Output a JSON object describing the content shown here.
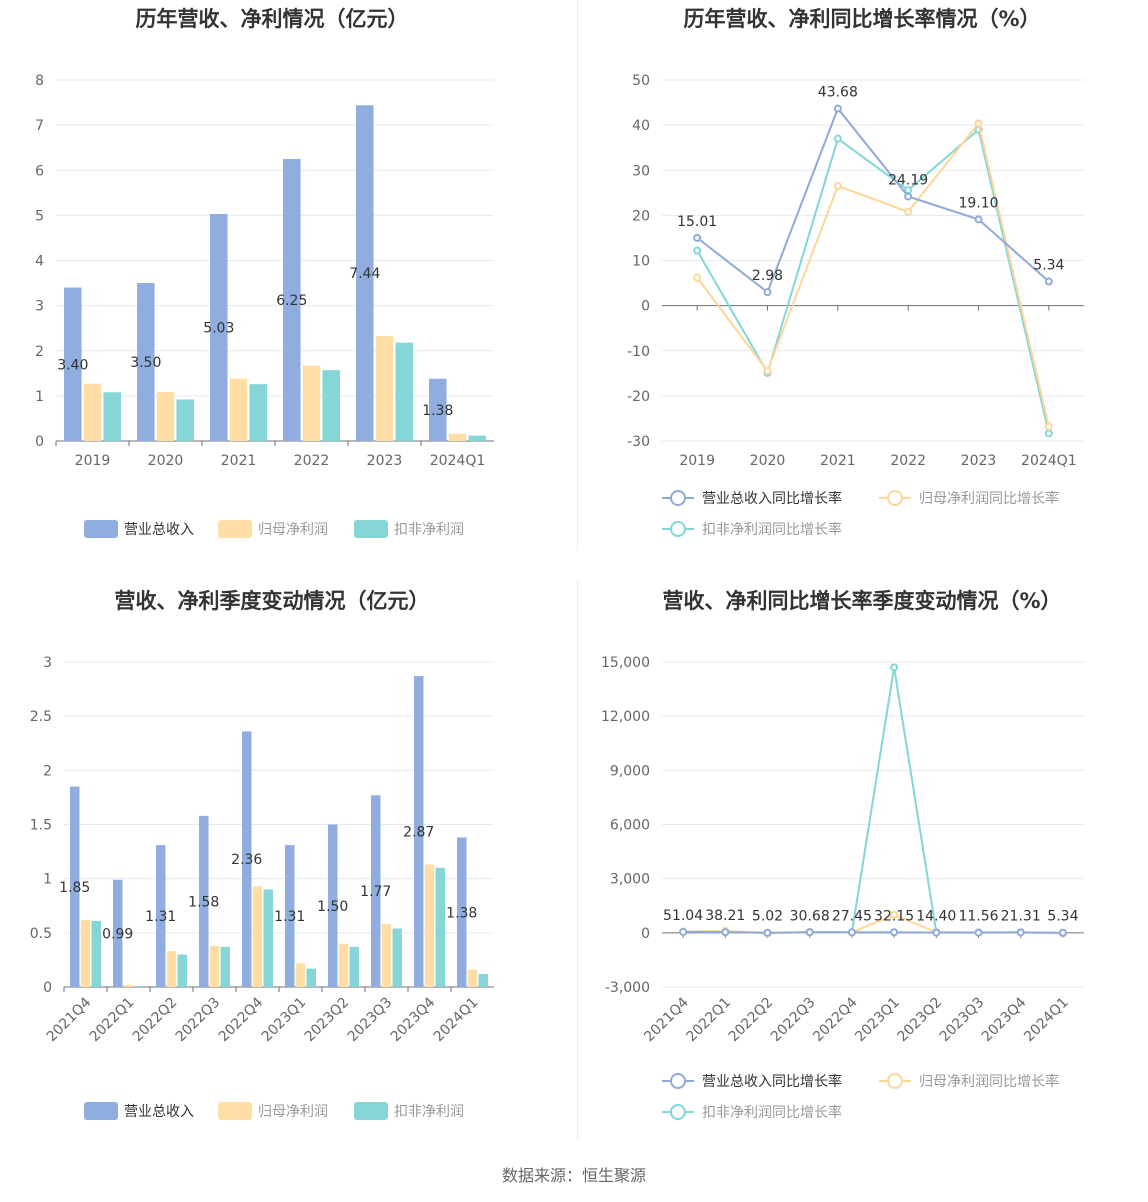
{
  "colors": {
    "revenue": "#8fadde",
    "parent_profit": "#ffdea6",
    "deducted_profit": "#86d6d8",
    "revenue_line": "#8fa9db",
    "parent_line": "#ffd698",
    "deducted_line": "#7fd8d7"
  },
  "legend": {
    "bar": [
      "营业总收入",
      "归母净利润",
      "扣非净利润"
    ],
    "line": [
      "营业总收入同比增长率",
      "归母净利润同比增长率",
      "扣非净利润同比增长率"
    ]
  },
  "footer": {
    "source": "数据来源：恒生聚源"
  },
  "chart_data": [
    {
      "id": "annual-amount",
      "type": "bar",
      "title": "历年营收、净利情况（亿元）",
      "categories": [
        "2019",
        "2020",
        "2021",
        "2022",
        "2023",
        "2024Q1"
      ],
      "ylim": [
        0,
        8
      ],
      "yticks": [
        "0",
        "1",
        "2",
        "3",
        "4",
        "5",
        "6",
        "7",
        "8"
      ],
      "ytick_values": [
        0,
        1,
        2,
        3,
        4,
        5,
        6,
        7,
        8
      ],
      "series": [
        {
          "name": "营业总收入",
          "values": [
            3.4,
            3.5,
            5.03,
            6.25,
            7.44,
            1.38
          ],
          "labels": [
            "3.40",
            "3.50",
            "5.03",
            "6.25",
            "7.44",
            "1.38"
          ]
        },
        {
          "name": "归母净利润",
          "values": [
            1.27,
            1.09,
            1.38,
            1.67,
            2.33,
            0.16
          ]
        },
        {
          "name": "扣非净利润",
          "values": [
            1.08,
            0.92,
            1.26,
            1.57,
            2.18,
            0.12
          ]
        }
      ],
      "grid": true,
      "legend_position": "bottom"
    },
    {
      "id": "annual-growth",
      "type": "line",
      "title": "历年营收、净利同比增长率情况（%）",
      "categories": [
        "2019",
        "2020",
        "2021",
        "2022",
        "2023",
        "2024Q1"
      ],
      "ylim": [
        -30,
        50
      ],
      "yticks": [
        "-30",
        "-20",
        "-10",
        "0",
        "10",
        "20",
        "30",
        "40",
        "50"
      ],
      "ytick_values": [
        -30,
        -20,
        -10,
        0,
        10,
        20,
        30,
        40,
        50
      ],
      "series": [
        {
          "name": "营业总收入同比增长率",
          "values": [
            15.01,
            2.98,
            43.68,
            24.19,
            19.1,
            5.34
          ],
          "labels": [
            "15.01",
            "2.98",
            "43.68",
            "24.19",
            "19.10",
            "5.34"
          ]
        },
        {
          "name": "归母净利润同比增长率",
          "values": [
            6.2,
            -14.5,
            26.5,
            20.8,
            40.4,
            -26.8
          ]
        },
        {
          "name": "扣非净利润同比增长率",
          "values": [
            12.2,
            -14.9,
            37.0,
            25.6,
            39.0,
            -28.3
          ]
        }
      ],
      "grid": true,
      "legend_position": "bottom"
    },
    {
      "id": "quarterly-amount",
      "type": "bar",
      "title": "营收、净利季度变动情况（亿元）",
      "categories": [
        "2021Q4",
        "2022Q1",
        "2022Q2",
        "2022Q3",
        "2022Q4",
        "2023Q1",
        "2023Q2",
        "2023Q3",
        "2023Q4",
        "2024Q1"
      ],
      "ylim": [
        0,
        3
      ],
      "yticks": [
        "0",
        "0.5",
        "1",
        "1.5",
        "2",
        "2.5",
        "3"
      ],
      "ytick_values": [
        0,
        0.5,
        1,
        1.5,
        2,
        2.5,
        3
      ],
      "series": [
        {
          "name": "营业总收入",
          "values": [
            1.85,
            0.99,
            1.31,
            1.58,
            2.36,
            1.31,
            1.5,
            1.77,
            2.87,
            1.38
          ],
          "labels": [
            "1.85",
            "0.99",
            "1.31",
            "1.58",
            "2.36",
            "1.31",
            "1.50",
            "1.77",
            "2.87",
            "1.38"
          ]
        },
        {
          "name": "归母净利润",
          "values": [
            0.62,
            0.02,
            0.33,
            0.38,
            0.93,
            0.22,
            0.4,
            0.58,
            1.13,
            0.16
          ]
        },
        {
          "name": "扣非净利润",
          "values": [
            0.61,
            0.01,
            0.3,
            0.37,
            0.9,
            0.17,
            0.37,
            0.54,
            1.1,
            0.12
          ]
        }
      ],
      "grid": true,
      "legend_position": "bottom"
    },
    {
      "id": "quarterly-growth",
      "type": "line",
      "title": "营收、净利同比增长率季度变动情况（%）",
      "categories": [
        "2021Q4",
        "2022Q1",
        "2022Q2",
        "2022Q3",
        "2022Q4",
        "2023Q1",
        "2023Q2",
        "2023Q3",
        "2023Q4",
        "2024Q1"
      ],
      "ylim": [
        -3000,
        15000
      ],
      "yticks": [
        "-3,000",
        "0",
        "3,000",
        "6,000",
        "9,000",
        "12,000",
        "15,000"
      ],
      "ytick_values": [
        -3000,
        0,
        3000,
        6000,
        9000,
        12000,
        15000
      ],
      "series": [
        {
          "name": "营业总收入同比增长率",
          "values": [
            51.04,
            38.21,
            5.02,
            30.68,
            27.45,
            32.15,
            14.4,
            11.56,
            21.31,
            5.34
          ],
          "labels": [
            "51.04",
            "38.21",
            "5.02",
            "30.68",
            "27.45",
            "32.15",
            "14.40",
            "11.56",
            "21.31",
            "5.34"
          ]
        },
        {
          "name": "归母净利润同比增长率",
          "values": [
            60,
            110,
            -20,
            40,
            20,
            1000,
            30,
            20,
            25,
            -20
          ]
        },
        {
          "name": "扣非净利润同比增长率",
          "values": [
            70,
            100,
            -30,
            50,
            30,
            14700,
            40,
            25,
            30,
            -30
          ]
        }
      ],
      "grid": true,
      "legend_position": "bottom"
    }
  ]
}
